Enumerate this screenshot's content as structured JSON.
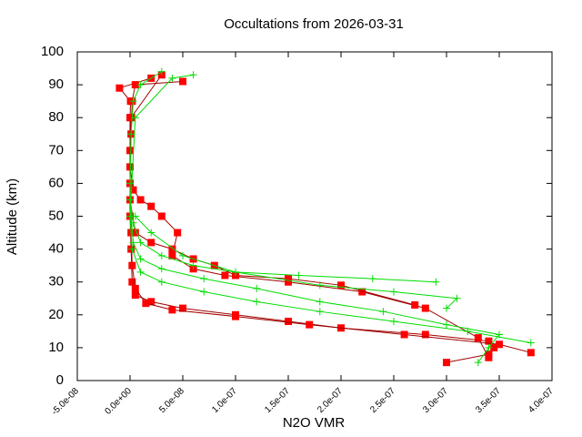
{
  "chart_data": {
    "type": "line",
    "title": "Occultations from 2026-03-31",
    "x_label": "N2O VMR",
    "y_label": "Altitude (km)",
    "xlim": [
      -5e-08,
      4e-07
    ],
    "ylim": [
      0,
      100
    ],
    "xticks": [
      {
        "value": -5e-08,
        "label": "-5.0e-08"
      },
      {
        "value": 0,
        "label": "0.0e+00"
      },
      {
        "value": 5e-08,
        "label": "5.0e-08"
      },
      {
        "value": 1e-07,
        "label": "1.0e-07"
      },
      {
        "value": 1.5e-07,
        "label": "1.5e-07"
      },
      {
        "value": 2e-07,
        "label": "2.0e-07"
      },
      {
        "value": 2.5e-07,
        "label": "2.5e-07"
      },
      {
        "value": 3e-07,
        "label": "3.0e-07"
      },
      {
        "value": 3.5e-07,
        "label": "3.5e-07"
      },
      {
        "value": 4e-07,
        "label": "4.0e-07"
      }
    ],
    "yticks": [
      0,
      10,
      20,
      30,
      40,
      50,
      60,
      70,
      80,
      90,
      100
    ],
    "series": [
      {
        "color": "#ff0000",
        "line_color": "#a00000",
        "marker": "square",
        "x": [
          3e-07,
          3.4e-07,
          3.45e-07,
          3.4e-07,
          2.8e-07,
          2e-07,
          1.5e-07,
          1e-07,
          5e-08,
          2e-08,
          5e-09,
          2e-09,
          1e-09,
          0,
          0,
          0,
          0,
          5e-10,
          -1e-08,
          2e-08
        ],
        "values": [
          5.5,
          8,
          10,
          12,
          14,
          16,
          18,
          20,
          22,
          24,
          26,
          30,
          40,
          50,
          60,
          70,
          80,
          85,
          89,
          92
        ]
      },
      {
        "color": "#ff0000",
        "line_color": "#a00000",
        "marker": "square",
        "x": [
          3.8e-07,
          3.5e-07,
          2.6e-07,
          1.7e-07,
          1e-07,
          4e-08,
          1.5e-08,
          5e-09,
          2e-09,
          1e-09,
          0,
          1e-09,
          2e-09,
          5e-09,
          5e-08
        ],
        "values": [
          8.5,
          11,
          14,
          17,
          19.5,
          21.5,
          23.5,
          28,
          35,
          45,
          60,
          75,
          85,
          90,
          91
        ]
      },
      {
        "color": "#ff0000",
        "line_color": "#a00000",
        "marker": "square",
        "x": [
          3.4e-07,
          3.3e-07,
          2.8e-07,
          2.2e-07,
          1.5e-07,
          9e-08,
          6e-08,
          4e-08,
          4.5e-08,
          3e-08,
          2e-08,
          1e-08,
          3e-09,
          0,
          1e-09,
          3e-08
        ],
        "values": [
          7,
          13,
          22,
          27,
          30,
          32,
          34,
          38,
          45,
          50,
          53,
          55,
          58,
          65,
          80,
          93
        ]
      },
      {
        "color": "#ff0000",
        "line_color": "#a00000",
        "marker": "square",
        "x": [
          2.7e-07,
          2e-07,
          1.5e-07,
          1e-07,
          8e-08,
          6e-08,
          4e-08,
          2e-08,
          5e-09,
          0
        ],
        "values": [
          23,
          29,
          31,
          32,
          35,
          37,
          40,
          42,
          45,
          55
        ]
      },
      {
        "color": "#00dd00",
        "line_color": "#00dd00",
        "marker": "plus",
        "x": [
          3.3e-07,
          3.4e-07,
          3.5e-07,
          3e-07,
          2.4e-07,
          1.8e-07,
          1.2e-07,
          7e-08,
          3e-08,
          1e-08,
          3e-09,
          1e-09,
          0,
          1e-09,
          3e-09,
          1e-08,
          3e-08
        ],
        "values": [
          5.5,
          10,
          14,
          17,
          21,
          24,
          28,
          31,
          34,
          37,
          42,
          50,
          60,
          75,
          85,
          90,
          94
        ]
      },
      {
        "color": "#00dd00",
        "line_color": "#00dd00",
        "marker": "plus",
        "x": [
          3.8e-07,
          3.2e-07,
          2.5e-07,
          1.8e-07,
          1.2e-07,
          7e-08,
          3e-08,
          1e-08,
          2e-09,
          0,
          5e-09,
          4e-08,
          6e-08
        ],
        "values": [
          11.5,
          15,
          18,
          21,
          24,
          27,
          30,
          33,
          40,
          50,
          80,
          92,
          93
        ]
      },
      {
        "color": "#00dd00",
        "line_color": "#00dd00",
        "marker": "plus",
        "x": [
          2.9e-07,
          2.3e-07,
          1.6e-07,
          1e-07,
          6e-08,
          3e-08,
          1e-08,
          3e-09,
          0
        ],
        "values": [
          30,
          31,
          32,
          33,
          35,
          38,
          42,
          48,
          55
        ]
      },
      {
        "color": "#00dd00",
        "line_color": "#00dd00",
        "marker": "plus",
        "x": [
          3e-07,
          3.1e-07,
          2.5e-07,
          1.8e-07,
          1e-07,
          5e-08,
          2e-08,
          5e-09
        ],
        "values": [
          22,
          25,
          27,
          29,
          33,
          38,
          45,
          50
        ]
      }
    ]
  }
}
